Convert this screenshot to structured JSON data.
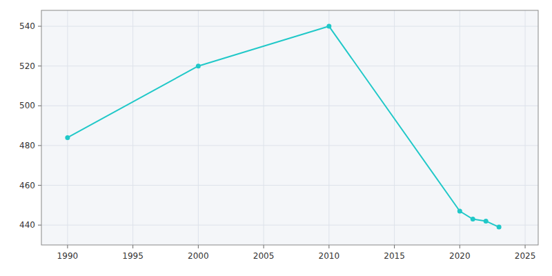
{
  "chart_data": {
    "type": "line",
    "x": [
      1990,
      2000,
      2010,
      2020,
      2021,
      2022,
      2023
    ],
    "values": [
      484,
      520,
      540,
      447,
      443,
      442,
      439
    ],
    "color": "#20C8C8",
    "marker": "circle",
    "xlim": [
      1988,
      2026
    ],
    "ylim": [
      430,
      548
    ],
    "xticks": [
      1990,
      1995,
      2000,
      2005,
      2010,
      2015,
      2020,
      2025
    ],
    "yticks": [
      440,
      460,
      480,
      500,
      520,
      540
    ],
    "grid": true
  }
}
